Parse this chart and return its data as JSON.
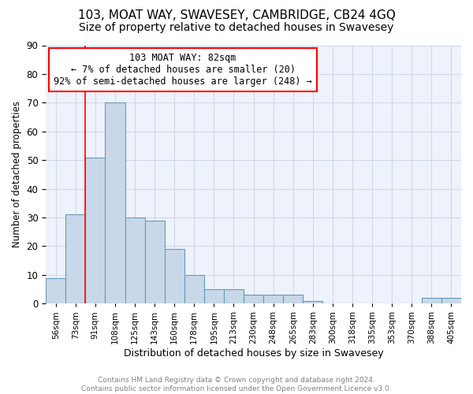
{
  "title": "103, MOAT WAY, SWAVESEY, CAMBRIDGE, CB24 4GQ",
  "subtitle": "Size of property relative to detached houses in Swavesey",
  "xlabel": "Distribution of detached houses by size in Swavesey",
  "ylabel": "Number of detached properties",
  "bin_labels": [
    "56sqm",
    "73sqm",
    "91sqm",
    "108sqm",
    "125sqm",
    "143sqm",
    "160sqm",
    "178sqm",
    "195sqm",
    "213sqm",
    "230sqm",
    "248sqm",
    "265sqm",
    "283sqm",
    "300sqm",
    "318sqm",
    "335sqm",
    "353sqm",
    "370sqm",
    "388sqm",
    "405sqm"
  ],
  "bin_values": [
    9,
    31,
    51,
    70,
    30,
    29,
    19,
    10,
    5,
    5,
    3,
    3,
    3,
    1,
    0,
    0,
    0,
    0,
    0,
    2,
    2
  ],
  "bar_color": "#c8d8e8",
  "bar_edge_color": "#6699bb",
  "annotation_line1": "103 MOAT WAY: 82sqm",
  "annotation_line2": "← 7% of detached houses are smaller (20)",
  "annotation_line3": "92% of semi-detached houses are larger (248) →",
  "annotation_box_color": "white",
  "annotation_box_edge_color": "red",
  "vline_color": "red",
  "ylim": [
    0,
    90
  ],
  "yticks": [
    0,
    10,
    20,
    30,
    40,
    50,
    60,
    70,
    80,
    90
  ],
  "grid_color": "#d0d8e8",
  "background_color": "#eef2fb",
  "title_fontsize": 11,
  "subtitle_fontsize": 10,
  "footer_line1": "Contains HM Land Registry data © Crown copyright and database right 2024.",
  "footer_line2": "Contains public sector information licensed under the Open Government Licence v3.0."
}
